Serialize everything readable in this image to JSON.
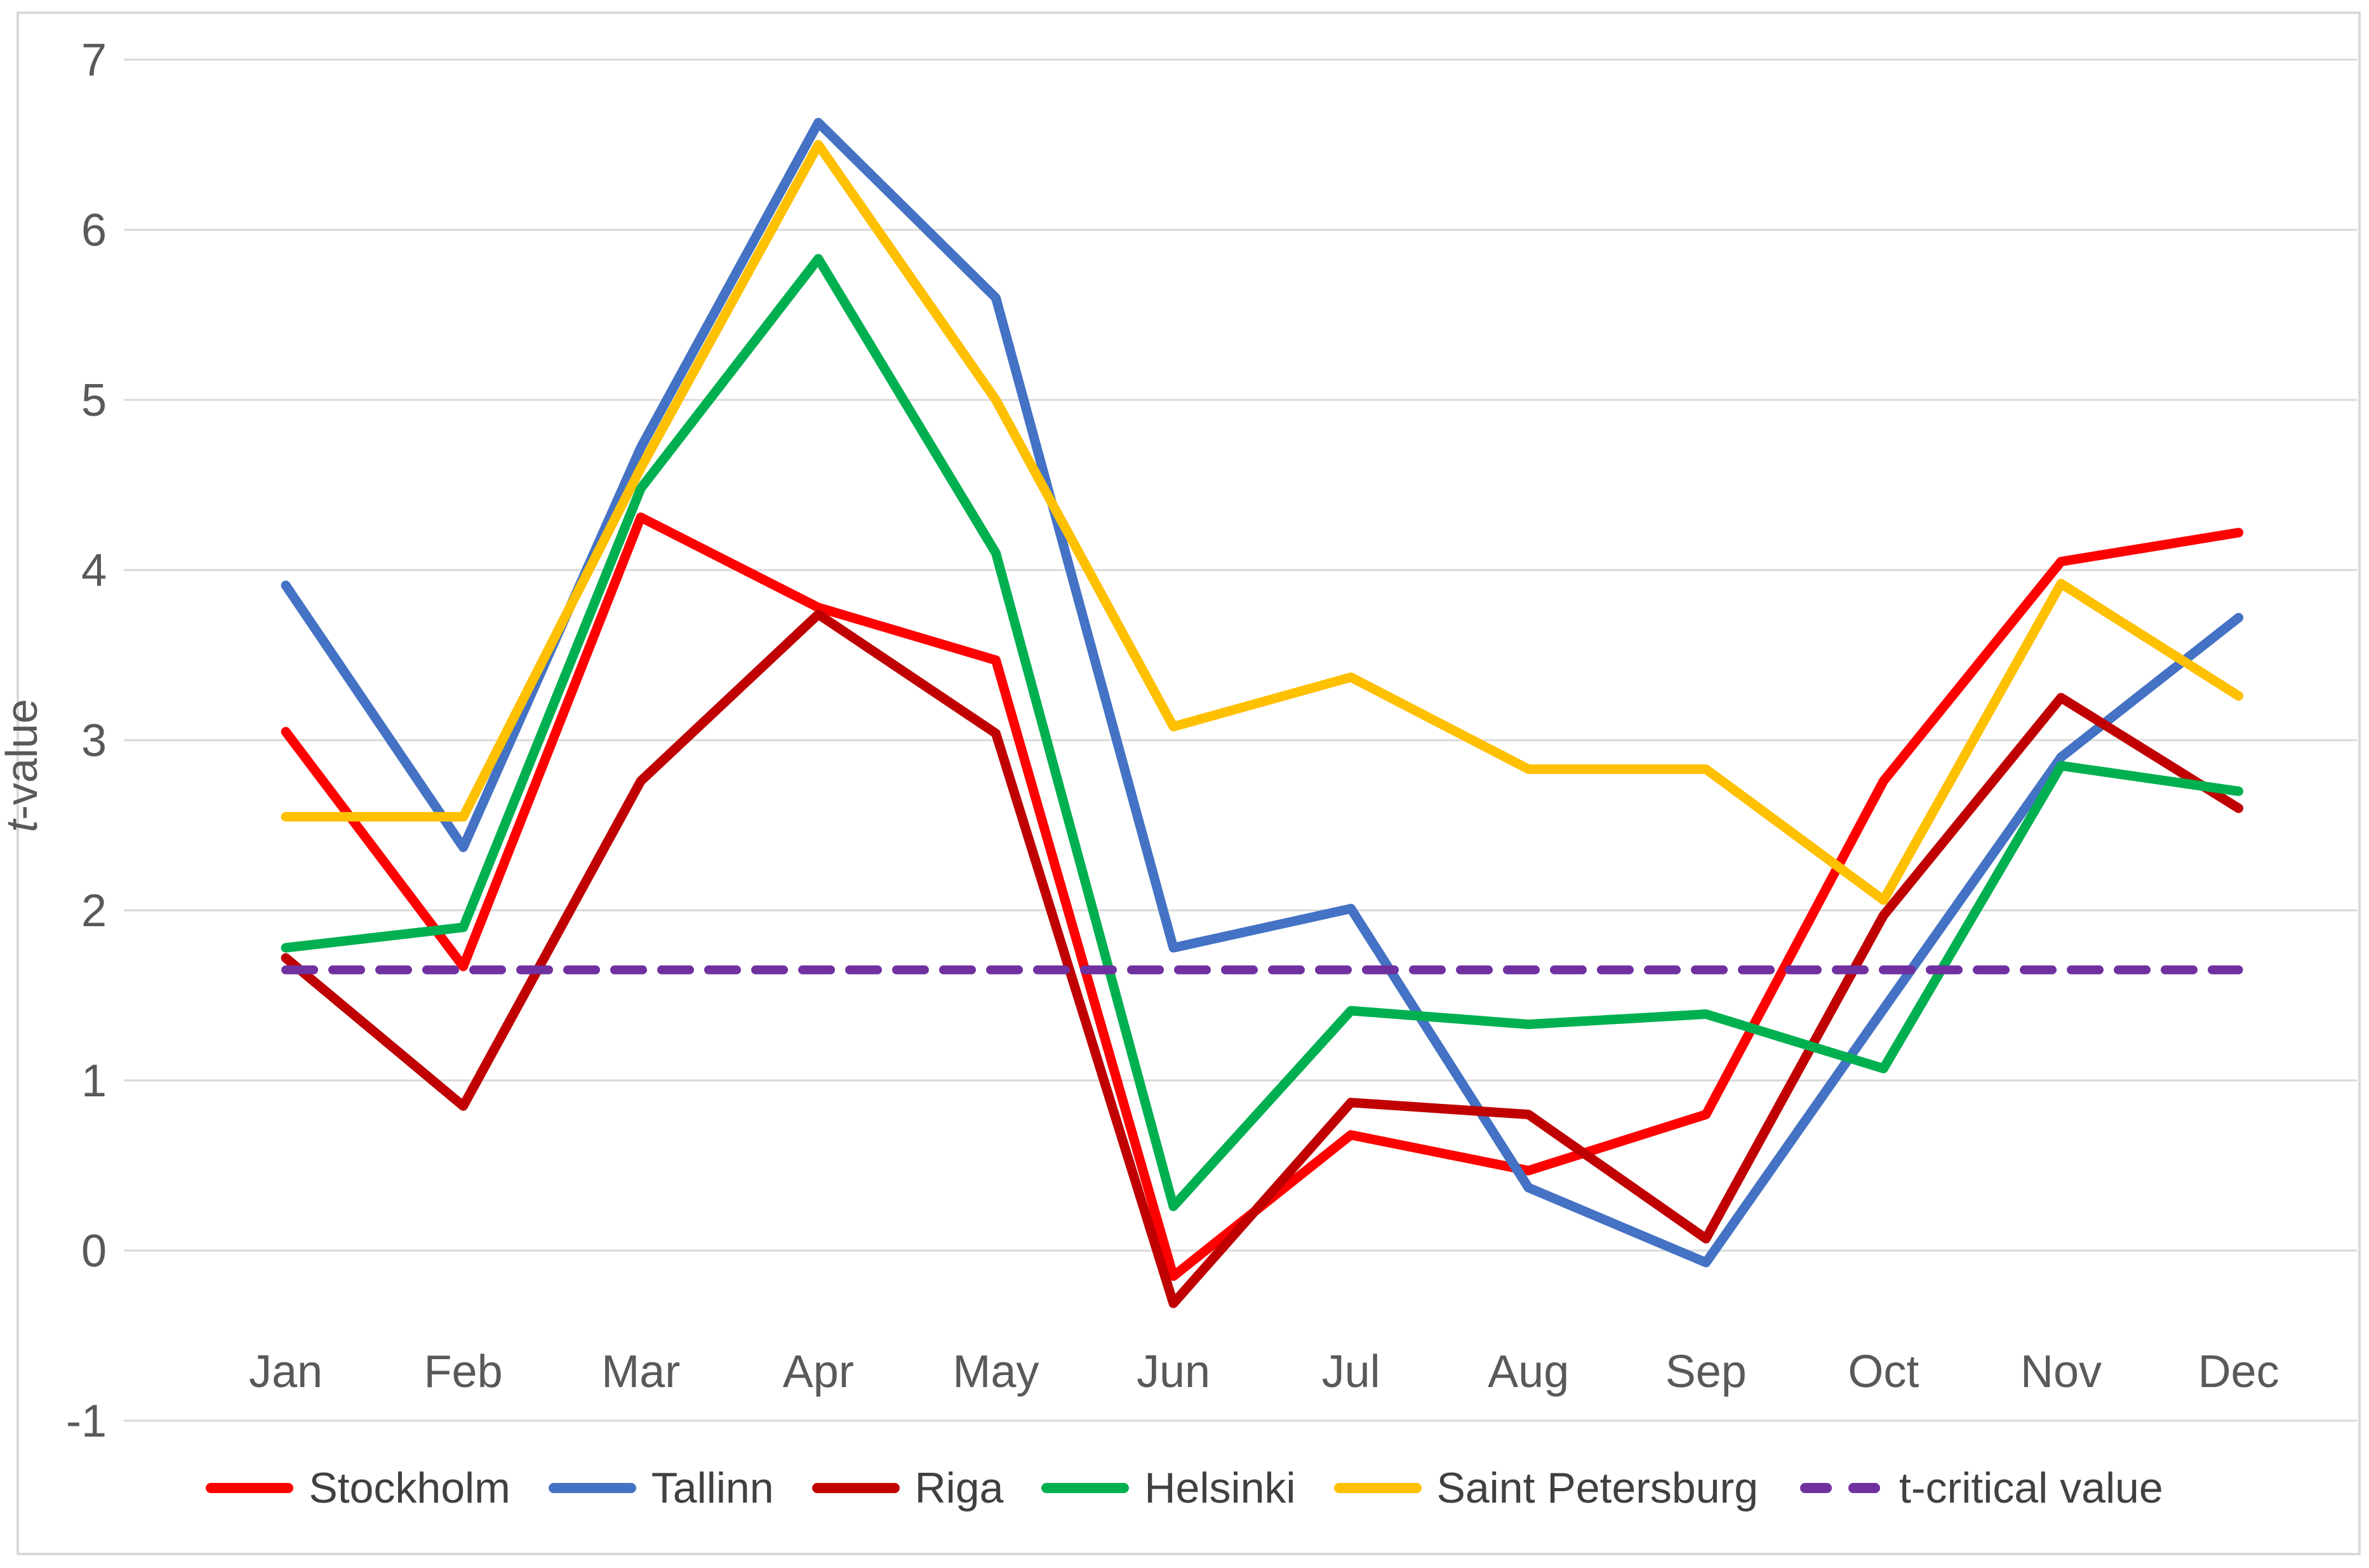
{
  "chart_data": {
    "type": "line",
    "title": "",
    "ylabel": {
      "italic": "t",
      "rest": "-value"
    },
    "xlabel": "",
    "ylim": [
      -1,
      7
    ],
    "yticks": [
      7,
      6,
      5,
      4,
      3,
      2,
      1,
      0,
      -1
    ],
    "grid": "horizontal",
    "legend_position": "bottom",
    "categories": [
      "Jan",
      "Feb",
      "Mar",
      "Apr",
      "May",
      "Jun",
      "Jul",
      "Aug",
      "Sep",
      "Oct",
      "Nov",
      "Dec"
    ],
    "series": [
      {
        "name": "Stockholm",
        "color": "#FF0000",
        "dash": false,
        "values": [
          3.05,
          1.67,
          4.31,
          3.78,
          3.47,
          -0.15,
          0.68,
          0.47,
          0.8,
          2.76,
          4.05,
          4.22
        ]
      },
      {
        "name": "Tallinn",
        "color": "#4472C4",
        "dash": false,
        "values": [
          3.91,
          2.37,
          4.72,
          6.63,
          5.6,
          1.78,
          2.01,
          0.37,
          -0.07,
          1.42,
          2.9,
          3.72
        ]
      },
      {
        "name": "Riga",
        "color": "#C00000",
        "dash": false,
        "values": [
          1.72,
          0.85,
          2.76,
          3.74,
          3.04,
          -0.31,
          0.87,
          0.8,
          0.07,
          1.97,
          3.25,
          2.6
        ]
      },
      {
        "name": "Helsinki",
        "color": "#00B050",
        "dash": false,
        "values": [
          1.78,
          1.9,
          4.48,
          5.83,
          4.1,
          0.26,
          1.41,
          1.33,
          1.39,
          1.07,
          2.85,
          2.7
        ]
      },
      {
        "name": "Saint Petersburg",
        "color": "#FFC000",
        "dash": false,
        "values": [
          2.55,
          2.55,
          4.6,
          6.5,
          5.0,
          3.08,
          3.37,
          2.83,
          2.83,
          2.06,
          3.92,
          3.26
        ]
      },
      {
        "name": "t-critical value",
        "color": "#7030A0",
        "dash": true,
        "values": [
          1.65,
          1.65,
          1.65,
          1.65,
          1.65,
          1.65,
          1.65,
          1.65,
          1.65,
          1.65,
          1.65,
          1.65
        ]
      }
    ],
    "colors": {
      "grid": "#D9D9D9",
      "border": "#D9D9D9",
      "axis_text": "#595959",
      "legend_text": "#404040",
      "background": "#FFFFFF"
    }
  }
}
